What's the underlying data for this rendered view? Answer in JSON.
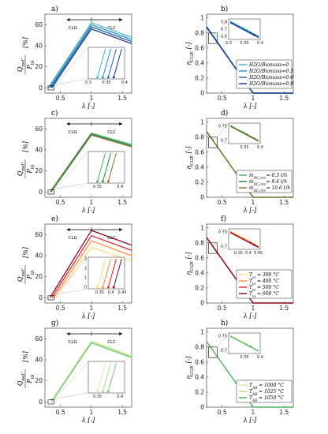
{
  "chart_data": [
    {
      "panel": "a)",
      "type": "line",
      "xlabel": "λ [-]",
      "ylabel_top": "Q_net.",
      "ylabel_bottom": "P_th",
      "ylabel_unit": "[%]",
      "xlim": [
        0.25,
        1.65
      ],
      "ylim": [
        -5,
        70
      ],
      "xticks": [
        "0.5",
        "1",
        "1.5"
      ],
      "yticks": [
        "0",
        "20",
        "40",
        "60"
      ],
      "regions": [
        "CLG",
        "CLC"
      ],
      "colors": [
        "#41b6c4",
        "#1d91c0",
        "#225ea8",
        "#0c2c84"
      ],
      "series": [
        {
          "x": [
            0.3,
            1.0,
            1.65
          ],
          "y": [
            0,
            62,
            48
          ]
        },
        {
          "x": [
            0.32,
            1.0,
            1.65
          ],
          "y": [
            0,
            60,
            46
          ]
        },
        {
          "x": [
            0.34,
            1.0,
            1.65
          ],
          "y": [
            0,
            58,
            44
          ]
        },
        {
          "x": [
            0.36,
            1.0,
            1.65
          ],
          "y": [
            0,
            56,
            42
          ]
        }
      ],
      "inset": {
        "xlim": [
          0.3,
          0.4
        ],
        "xticks": [
          "0.3",
          "0.35",
          "0.4"
        ],
        "yticks": [],
        "markers_x": [
          0.34,
          0.355,
          0.37,
          0.385
        ]
      }
    },
    {
      "panel": "b)",
      "type": "line",
      "xlabel": "λ [-]",
      "ylabel": "η_CGE [-]",
      "xlim": [
        0.25,
        1.65
      ],
      "ylim": [
        0,
        1.05
      ],
      "xticks": [
        "0.5",
        "1",
        "1.5"
      ],
      "yticks": [
        "0",
        "0.2",
        "0.4",
        "0.6",
        "0.8",
        "1"
      ],
      "colors": [
        "#41b6c4",
        "#1d91c0",
        "#225ea8",
        "#0c2c84"
      ],
      "series": [
        {
          "name": "H2O/Biomass=0",
          "x": [
            0.25,
            1.0,
            1.65
          ],
          "y": [
            0.89,
            0,
            0
          ]
        },
        {
          "name": "H2O/Biomass=0.3",
          "x": [
            0.25,
            1.0,
            1.65
          ],
          "y": [
            0.885,
            0,
            0
          ]
        },
        {
          "name": "H2O/Biomass=0.6",
          "x": [
            0.25,
            1.0,
            1.65
          ],
          "y": [
            0.88,
            0,
            0
          ]
        },
        {
          "name": "H2O/Biomass=0.9",
          "x": [
            0.25,
            1.0,
            1.65
          ],
          "y": [
            0.875,
            0,
            0
          ]
        }
      ],
      "inset": {
        "xlim": [
          0.3,
          0.4
        ],
        "xticks": [
          "0.3",
          "0.35",
          "0.4"
        ],
        "yticks": [
          "0.8",
          "0.7",
          "0.6"
        ]
      }
    },
    {
      "panel": "c)",
      "type": "line",
      "xlabel": "λ [-]",
      "ylabel_top": "Q_net.",
      "ylabel_bottom": "P_th",
      "ylabel_unit": "[%]",
      "xlim": [
        0.25,
        1.65
      ],
      "ylim": [
        -5,
        70
      ],
      "xticks": [
        "0.5",
        "1",
        "1.5"
      ],
      "yticks": [
        "0",
        "20",
        "40",
        "60"
      ],
      "regions": [
        "CLG",
        "CLC"
      ],
      "colors": [
        "#41ab5d",
        "#238443",
        "#8c6d31"
      ],
      "series": [
        {
          "x": [
            0.33,
            1.0,
            1.65
          ],
          "y": [
            0,
            56,
            45
          ]
        },
        {
          "x": [
            0.34,
            1.0,
            1.65
          ],
          "y": [
            0,
            55,
            44
          ]
        },
        {
          "x": [
            0.35,
            1.0,
            1.65
          ],
          "y": [
            0,
            54,
            43
          ]
        }
      ],
      "inset": {
        "xlim": [
          0.33,
          0.41
        ],
        "xticks": [
          "0.35",
          "0.4"
        ],
        "yticks": []
      }
    },
    {
      "panel": "d)",
      "type": "line",
      "xlabel": "λ [-]",
      "ylabel": "η_CGE [-]",
      "xlim": [
        0.25,
        1.65
      ],
      "ylim": [
        0,
        1.05
      ],
      "xticks": [
        "0.5",
        "1",
        "1.5"
      ],
      "yticks": [
        "0",
        "0.2",
        "0.4",
        "0.6",
        "0.8",
        "1"
      ],
      "colors": [
        "#41ab5d",
        "#238443",
        "#8c6d31"
      ],
      "series": [
        {
          "name": "ṁ_OC,circ= 6.3 t/h",
          "x": [
            0.25,
            1.0,
            1.65
          ],
          "y": [
            0.88,
            0,
            0
          ]
        },
        {
          "name": "ṁ_OC,circ= 8.4 t/h",
          "x": [
            0.25,
            1.0,
            1.65
          ],
          "y": [
            0.875,
            0,
            0
          ]
        },
        {
          "name": "ṁ_OC,circ= 10.6 t/h",
          "x": [
            0.25,
            1.0,
            1.65
          ],
          "y": [
            0.87,
            0,
            0
          ]
        }
      ],
      "inset": {
        "xlim": [
          0.3,
          0.4
        ],
        "xticks": [
          "0.35",
          "0.4"
        ],
        "yticks": [
          "0.75",
          "0.7"
        ]
      }
    },
    {
      "panel": "e)",
      "type": "line",
      "xlabel": "λ [-]",
      "ylabel_top": "Q_net.",
      "ylabel_bottom": "P_th",
      "ylabel_unit": "[%]",
      "xlim": [
        0.25,
        1.65
      ],
      "ylim": [
        -5,
        70
      ],
      "xticks": [
        "0.5",
        "1",
        "1.5"
      ],
      "yticks": [
        "0",
        "20",
        "40",
        "60"
      ],
      "regions": [
        "CLG",
        "CLC"
      ],
      "colors": [
        "#fed976",
        "#fd8d3c",
        "#e31a1c",
        "#800026"
      ],
      "series": [
        {
          "x": [
            0.42,
            1.0,
            1.65
          ],
          "y": [
            0,
            48,
            35
          ]
        },
        {
          "x": [
            0.39,
            1.0,
            1.65
          ],
          "y": [
            0,
            54,
            40
          ]
        },
        {
          "x": [
            0.36,
            1.0,
            1.65
          ],
          "y": [
            0,
            59,
            45
          ]
        },
        {
          "x": [
            0.33,
            1.0,
            1.65
          ],
          "y": [
            0,
            64,
            50
          ]
        }
      ],
      "inset": {
        "xlim": [
          0.3,
          0.46
        ],
        "xticks": [
          "0.35",
          "0.4",
          "0.45"
        ],
        "yticks": [
          "0",
          "1",
          "2",
          "3"
        ]
      }
    },
    {
      "panel": "f)",
      "type": "line",
      "xlabel": "λ [-]",
      "ylabel": "η_CGE [-]",
      "xlim": [
        0.25,
        1.65
      ],
      "ylim": [
        0,
        1.05
      ],
      "xticks": [
        "0.5",
        "1",
        "1.5"
      ],
      "yticks": [
        "0",
        "0.2",
        "0.4",
        "0.6",
        "0.8",
        "1"
      ],
      "colors": [
        "#fed976",
        "#fd8d3c",
        "#e31a1c",
        "#800026"
      ],
      "series": [
        {
          "name": "T_in = 300 °C",
          "x": [
            0.25,
            1.0,
            1.65
          ],
          "y": [
            0.86,
            0,
            0
          ]
        },
        {
          "name": "T_in = 400 °C",
          "x": [
            0.25,
            1.0,
            1.65
          ],
          "y": [
            0.865,
            0,
            0
          ]
        },
        {
          "name": "T_in = 500 °C",
          "x": [
            0.25,
            1.0,
            1.65
          ],
          "y": [
            0.87,
            0,
            0
          ]
        },
        {
          "name": "T_in = 600 °C",
          "x": [
            0.25,
            1.0,
            1.65
          ],
          "y": [
            0.875,
            0,
            0
          ]
        }
      ],
      "inset": {
        "xlim": [
          0.3,
          0.46
        ],
        "xticks": [
          "0.35",
          "0.4",
          "0.45"
        ],
        "yticks": [
          "0.75",
          "0.7"
        ]
      }
    },
    {
      "panel": "g)",
      "type": "line",
      "xlabel": "λ [-]",
      "ylabel_top": "Q_net.",
      "ylabel_bottom": "P_th",
      "ylabel_unit": "[%]",
      "xlim": [
        0.25,
        1.65
      ],
      "ylim": [
        -5,
        70
      ],
      "xticks": [
        "0.5",
        "1",
        "1.5"
      ],
      "yticks": [
        "0",
        "20",
        "40",
        "60"
      ],
      "regions": [
        "CLG",
        "CLC"
      ],
      "colors": [
        "#d9f0a3",
        "#addd8e",
        "#78c679"
      ],
      "series": [
        {
          "x": [
            0.34,
            1.0,
            1.65
          ],
          "y": [
            0,
            58,
            44
          ]
        },
        {
          "x": [
            0.35,
            1.0,
            1.65
          ],
          "y": [
            0,
            57,
            43
          ]
        },
        {
          "x": [
            0.36,
            1.0,
            1.65
          ],
          "y": [
            0,
            56,
            42
          ]
        }
      ],
      "inset": {
        "xlim": [
          0.33,
          0.41
        ],
        "xticks": [
          "0.35",
          "0.4"
        ],
        "yticks": []
      }
    },
    {
      "panel": "h)",
      "type": "line",
      "xlabel": "λ [-]",
      "ylabel": "η_CGE [-]",
      "xlim": [
        0.25,
        1.65
      ],
      "ylim": [
        0,
        1.05
      ],
      "xticks": [
        "0.5",
        "1",
        "1.5"
      ],
      "yticks": [
        "0",
        "0.2",
        "0.4",
        "0.6",
        "0.8",
        "1"
      ],
      "colors": [
        "#d9f0a3",
        "#addd8e",
        "#41ab5d"
      ],
      "series": [
        {
          "name": "T_AR = 1000 °C",
          "x": [
            0.25,
            1.0,
            1.65
          ],
          "y": [
            0.87,
            0,
            0
          ]
        },
        {
          "name": "T_AR = 1025 °C",
          "x": [
            0.25,
            1.0,
            1.65
          ],
          "y": [
            0.872,
            0,
            0
          ]
        },
        {
          "name": "T_AR = 1050 °C",
          "x": [
            0.25,
            1.0,
            1.65
          ],
          "y": [
            0.875,
            0,
            0
          ]
        }
      ],
      "inset": {
        "xlim": [
          0.3,
          0.4
        ],
        "xticks": [
          "0.35",
          "0.4"
        ],
        "yticks": [
          "0.75",
          "0.7"
        ]
      }
    }
  ]
}
